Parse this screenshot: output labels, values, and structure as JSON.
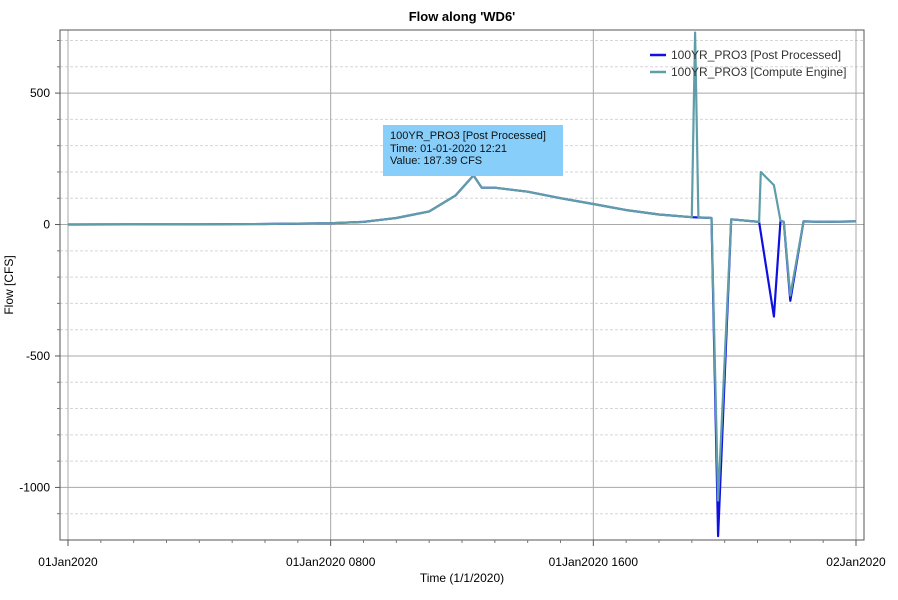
{
  "chart_data": {
    "type": "line",
    "title": "Flow along 'WD6'",
    "xlabel": "Time (1/1/2020)",
    "ylabel": "Flow [CFS]",
    "xlim_hours": [
      0,
      24
    ],
    "ylim": [
      -1200,
      740
    ],
    "x_ticks": [
      {
        "hour": 0,
        "label": "01Jan2020"
      },
      {
        "hour": 8,
        "label": "01Jan2020 0800"
      },
      {
        "hour": 16,
        "label": "01Jan2020 1600"
      },
      {
        "hour": 24,
        "label": "02Jan2020"
      }
    ],
    "y_ticks": [
      {
        "value": 500,
        "label": "500"
      },
      {
        "value": 0,
        "label": "0"
      },
      {
        "value": -500,
        "label": "-500"
      },
      {
        "value": -1000,
        "label": "-1000"
      }
    ],
    "grid": true,
    "legend_position": "top-right",
    "series": [
      {
        "name": "100YR_PRO3 [Post Processed]",
        "color": "#1010e0",
        "hours": [
          0,
          4,
          6,
          8,
          9,
          10,
          11,
          11.8,
          12.35,
          12.6,
          13,
          14,
          15,
          16,
          17,
          18,
          19,
          19.6,
          19.8,
          20.2,
          21.05,
          21.5,
          21.7,
          21.8,
          22,
          22.4,
          23,
          24
        ],
        "values": [
          0,
          1,
          2,
          5,
          10,
          25,
          50,
          110,
          187,
          140,
          140,
          125,
          100,
          78,
          55,
          38,
          28,
          25,
          -1185,
          20,
          10,
          -350,
          15,
          10,
          -290,
          12,
          10,
          12
        ]
      },
      {
        "name": "100YR_PRO3 [Compute Engine]",
        "color": "#5f9ea8",
        "hours": [
          0,
          4,
          6,
          8,
          9,
          10,
          11,
          11.8,
          12.35,
          12.6,
          13,
          14,
          15,
          16,
          17,
          18,
          19,
          19.1,
          19.2,
          19.6,
          19.8,
          20.2,
          21.05,
          21.1,
          21.5,
          21.7,
          21.8,
          22,
          22.4,
          23,
          24
        ],
        "values": [
          0,
          1,
          2,
          5,
          10,
          25,
          50,
          110,
          187,
          140,
          140,
          125,
          100,
          78,
          55,
          38,
          28,
          730,
          28,
          25,
          -1050,
          20,
          10,
          200,
          150,
          15,
          10,
          -270,
          12,
          10,
          12
        ]
      }
    ],
    "tooltip": {
      "line1": "100YR_PRO3  [Post  Processed]",
      "line2": "Time:  01-01-2020  12:21",
      "line3": "Value: 187.39 CFS",
      "bg_color": "#87cefa",
      "anchor_hour": 12.35,
      "anchor_value": 187.39
    }
  }
}
